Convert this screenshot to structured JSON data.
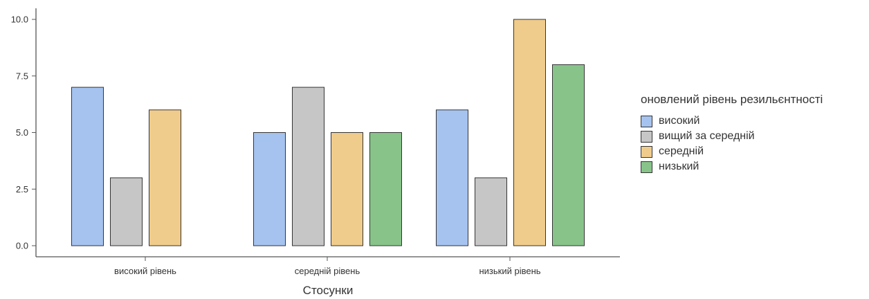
{
  "chart_data": {
    "type": "bar",
    "title": "",
    "xlabel": "Стосунки",
    "ylabel": "",
    "categories": [
      "високий рівень",
      "середній рівень",
      "низький рівень"
    ],
    "series": [
      {
        "name": "високий",
        "color": "#a6c3f0",
        "values": [
          7,
          5,
          6
        ]
      },
      {
        "name": "вищий за середній",
        "color": "#c6c6c6",
        "values": [
          3,
          7,
          3
        ]
      },
      {
        "name": "середній",
        "color": "#f0cc8c",
        "values": [
          6,
          5,
          10
        ]
      },
      {
        "name": "низький",
        "color": "#88c48a",
        "values": [
          0,
          5,
          8
        ]
      }
    ],
    "ylim": [
      0,
      10
    ],
    "yticks": [
      "0.0",
      "2.5",
      "5.0",
      "7.5",
      "10.0"
    ],
    "ytick_values": [
      0,
      2.5,
      5,
      7.5,
      10
    ],
    "grid": false,
    "legend": {
      "title": "оновлений рівень резильєнтності",
      "position": "right"
    }
  }
}
